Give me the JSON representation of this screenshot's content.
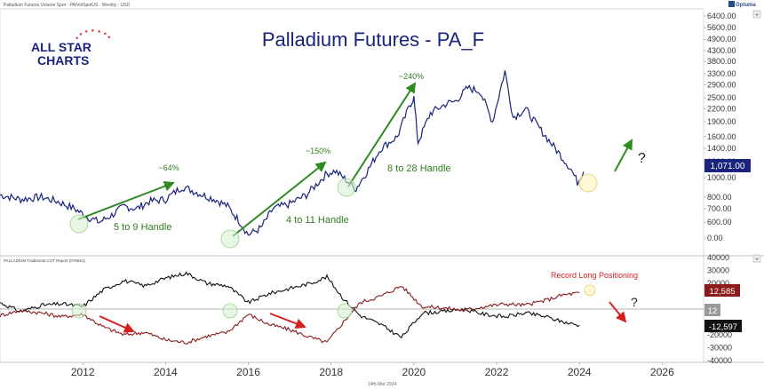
{
  "header": {
    "top_label": "Palladium Futures Volume Spot - PA/VolSpotUS - Weekly - USD",
    "brand": "Optuma",
    "date_footer": "14th Mar 2024"
  },
  "logo": {
    "line1": "ALL STAR",
    "line2": "CHARTS"
  },
  "colors": {
    "price_line": "#1a237e",
    "cot_commercials": "#111111",
    "cot_managed": "#8b1a1a",
    "arrow_green": "#2e8b22",
    "arrow_red": "#d62020",
    "title": "#1a237e",
    "handle_text": "#2e7d1e"
  },
  "chart_data": [
    {
      "type": "line",
      "title": "Palladium Futures - PA_F",
      "y_scale": "log",
      "y_ticks": [
        0,
        600,
        700,
        800,
        1000,
        1200,
        1400,
        1600,
        1900,
        2200,
        2500,
        2900,
        3300,
        3800,
        4300,
        4900,
        5600,
        6400
      ],
      "y_tick_labels": [
        "0.00",
        "600.00",
        "700.00",
        "800.00",
        "1000.00",
        "1200.00",
        "1400.00",
        "1600.00",
        "1900.00",
        "2200.00",
        "2500.00",
        "2900.00",
        "3300.00",
        "3800.00",
        "4300.00",
        "4900.00",
        "5600.00",
        "6400.00"
      ],
      "last_value_label": "1,071.00",
      "series": [
        {
          "values": [
            [
              2010.0,
              820
            ],
            [
              2010.5,
              780
            ],
            [
              2011.0,
              800
            ],
            [
              2011.4,
              760
            ],
            [
              2011.8,
              700
            ],
            [
              2012.1,
              640
            ],
            [
              2012.4,
              600
            ],
            [
              2012.7,
              650
            ],
            [
              2013.0,
              720
            ],
            [
              2013.3,
              700
            ],
            [
              2013.6,
              760
            ],
            [
              2014.0,
              780
            ],
            [
              2014.4,
              900
            ],
            [
              2014.6,
              870
            ],
            [
              2014.9,
              820
            ],
            [
              2015.2,
              780
            ],
            [
              2015.5,
              720
            ],
            [
              2015.8,
              600
            ],
            [
              2016.0,
              520
            ],
            [
              2016.3,
              560
            ],
            [
              2016.6,
              700
            ],
            [
              2017.0,
              740
            ],
            [
              2017.4,
              820
            ],
            [
              2017.9,
              1050
            ],
            [
              2018.1,
              1080
            ],
            [
              2018.4,
              960
            ],
            [
              2018.6,
              880
            ],
            [
              2018.9,
              1100
            ],
            [
              2019.2,
              1400
            ],
            [
              2019.6,
              1600
            ],
            [
              2019.9,
              2300
            ],
            [
              2020.0,
              2500
            ],
            [
              2020.1,
              1500
            ],
            [
              2020.4,
              2100
            ],
            [
              2020.8,
              2350
            ],
            [
              2021.0,
              2400
            ],
            [
              2021.3,
              2800
            ],
            [
              2021.6,
              2700
            ],
            [
              2021.9,
              1900
            ],
            [
              2022.2,
              3400
            ],
            [
              2022.4,
              2000
            ],
            [
              2022.7,
              2200
            ],
            [
              2023.0,
              1800
            ],
            [
              2023.3,
              1500
            ],
            [
              2023.6,
              1250
            ],
            [
              2023.8,
              1100
            ],
            [
              2023.95,
              950
            ],
            [
              2024.1,
              1071
            ]
          ]
        }
      ],
      "annotations": {
        "percent_labels": [
          "~64%",
          "~150%",
          "~240%"
        ],
        "handle_labels": [
          "5 to 9 Handle",
          "4 to 11 Handle",
          "8 to 28 Handle"
        ],
        "question_mark": "?"
      }
    },
    {
      "type": "line",
      "title": "PALLADIUM Traditional COT Report (076651)",
      "ylim": [
        -40000,
        40000
      ],
      "y_ticks": [
        -40000,
        -30000,
        -20000,
        0,
        20000,
        30000,
        40000
      ],
      "y_tick_labels": [
        "-40000",
        "-30000",
        "-20000",
        "0",
        "20000",
        "30000",
        "40000"
      ],
      "value_labels": [
        "12,585",
        "12",
        "-12,597"
      ],
      "annotation": "Record Long Positioning",
      "question_mark": "?",
      "series": [
        {
          "values": [
            [
              2010.0,
              5000
            ],
            [
              2010.5,
              -2000
            ],
            [
              2011.0,
              3000
            ],
            [
              2011.5,
              4000
            ],
            [
              2012.0,
              2000
            ],
            [
              2012.5,
              15000
            ],
            [
              2013.0,
              22000
            ],
            [
              2013.5,
              18000
            ],
            [
              2014.0,
              24000
            ],
            [
              2014.5,
              28000
            ],
            [
              2015.0,
              20000
            ],
            [
              2015.5,
              18000
            ],
            [
              2016.0,
              5000
            ],
            [
              2016.5,
              12000
            ],
            [
              2017.0,
              16000
            ],
            [
              2017.5,
              20000
            ],
            [
              2017.9,
              25000
            ],
            [
              2018.3,
              8000
            ],
            [
              2018.7,
              -5000
            ],
            [
              2019.2,
              -12000
            ],
            [
              2019.7,
              -22000
            ],
            [
              2020.2,
              -3000
            ],
            [
              2020.7,
              -2000
            ],
            [
              2021.2,
              0
            ],
            [
              2021.7,
              -4000
            ],
            [
              2022.2,
              -6000
            ],
            [
              2022.7,
              -3000
            ],
            [
              2023.2,
              -6000
            ],
            [
              2023.6,
              -10000
            ],
            [
              2024.0,
              -12597
            ]
          ]
        },
        {
          "values": [
            [
              2010.0,
              -5000
            ],
            [
              2010.5,
              -1000
            ],
            [
              2011.0,
              -3000
            ],
            [
              2011.5,
              -6000
            ],
            [
              2012.0,
              -4000
            ],
            [
              2012.5,
              -14000
            ],
            [
              2013.0,
              -20000
            ],
            [
              2013.5,
              -18000
            ],
            [
              2014.0,
              -24000
            ],
            [
              2014.5,
              -26000
            ],
            [
              2015.0,
              -21000
            ],
            [
              2015.5,
              -18000
            ],
            [
              2016.0,
              -4000
            ],
            [
              2016.5,
              -12000
            ],
            [
              2017.0,
              -16000
            ],
            [
              2017.5,
              -22000
            ],
            [
              2017.9,
              -26000
            ],
            [
              2018.3,
              -10000
            ],
            [
              2018.7,
              5000
            ],
            [
              2019.2,
              10000
            ],
            [
              2019.7,
              18000
            ],
            [
              2020.2,
              2000
            ],
            [
              2020.7,
              1000
            ],
            [
              2021.2,
              -1000
            ],
            [
              2021.7,
              2000
            ],
            [
              2022.2,
              4000
            ],
            [
              2022.7,
              3000
            ],
            [
              2023.2,
              7000
            ],
            [
              2023.6,
              11000
            ],
            [
              2024.0,
              12585
            ]
          ]
        }
      ]
    }
  ],
  "x_axis": {
    "range": [
      2010.0,
      2027.0
    ],
    "ticks": [
      2012,
      2014,
      2016,
      2018,
      2020,
      2022,
      2024,
      2026
    ],
    "tick_labels": [
      "2012",
      "2014",
      "2016",
      "2018",
      "2020",
      "2022",
      "2024",
      "2026"
    ]
  }
}
